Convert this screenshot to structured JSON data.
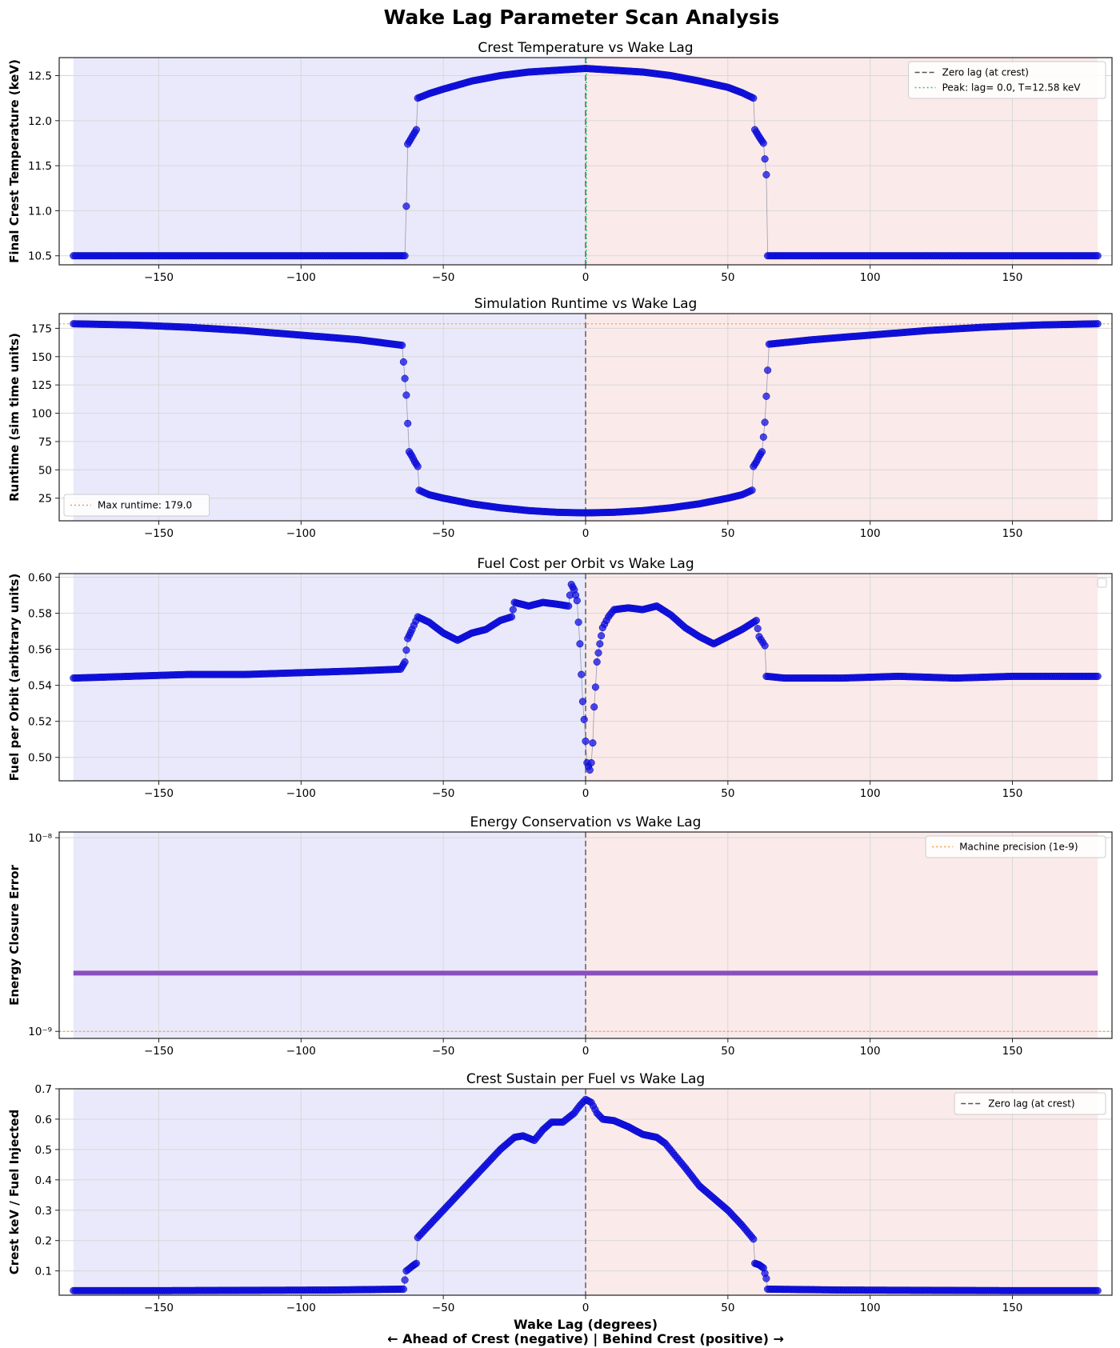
{
  "figure": {
    "title": "Wake Lag Parameter Scan Analysis",
    "xlabel": "Wake Lag (degrees)",
    "xlabel_note": "← Ahead of Crest (negative) | Behind Crest (positive) →"
  },
  "chart_data": [
    {
      "type": "scatter",
      "title": "Crest Temperature vs Wake Lag",
      "xlabel": "",
      "ylabel": "Final Crest Temperature (keV)",
      "xlim": [
        -185,
        185
      ],
      "ylim": [
        10.4,
        12.7
      ],
      "xticks": [
        -150,
        -100,
        -50,
        0,
        50,
        100,
        150
      ],
      "yticks": [
        10.5,
        11.0,
        11.5,
        12.0,
        12.5
      ],
      "ytick_labels": [
        "10.5",
        "11.0",
        "11.5",
        "12.0",
        "12.5"
      ],
      "grid": true,
      "shading": {
        "negative": "#e9e9fb",
        "positive": "#fbeaea"
      },
      "series_color": "#1010e6",
      "points": [
        [
          -180,
          10.5
        ],
        [
          -150,
          10.5
        ],
        [
          -120,
          10.5
        ],
        [
          -90,
          10.5
        ],
        [
          -70,
          10.5
        ],
        [
          -63.5,
          10.5
        ],
        [
          -63,
          11.05
        ],
        [
          -62.5,
          11.74
        ],
        [
          -61,
          11.82
        ],
        [
          -59.5,
          11.9
        ],
        [
          -59,
          12.25
        ],
        [
          -55,
          12.3
        ],
        [
          -50,
          12.35
        ],
        [
          -40,
          12.44
        ],
        [
          -30,
          12.5
        ],
        [
          -20,
          12.54
        ],
        [
          -10,
          12.56
        ],
        [
          0,
          12.58
        ],
        [
          10,
          12.56
        ],
        [
          20,
          12.54
        ],
        [
          30,
          12.5
        ],
        [
          40,
          12.44
        ],
        [
          50,
          12.37
        ],
        [
          55,
          12.31
        ],
        [
          59,
          12.25
        ],
        [
          59.5,
          11.9
        ],
        [
          61,
          11.82
        ],
        [
          62.5,
          11.75
        ],
        [
          63.5,
          11.4
        ],
        [
          64,
          10.5
        ],
        [
          70,
          10.5
        ],
        [
          100,
          10.5
        ],
        [
          130,
          10.5
        ],
        [
          160,
          10.5
        ],
        [
          180,
          10.5
        ]
      ],
      "reference_lines": [
        {
          "label": "Zero lag (at crest)",
          "x": 0,
          "style": "dashed",
          "color": "#555555"
        },
        {
          "label": "Peak: lag= 0.0, T=12.58 keV",
          "x": 0,
          "style": "dotted",
          "color": "#2ecc71"
        }
      ],
      "legend": "top-right",
      "log_y": false
    },
    {
      "type": "scatter",
      "title": "Simulation Runtime vs Wake Lag",
      "xlabel": "",
      "ylabel": "Runtime (sim time units)",
      "xlim": [
        -185,
        185
      ],
      "ylim": [
        5,
        188
      ],
      "xticks": [
        -150,
        -100,
        -50,
        0,
        50,
        100,
        150
      ],
      "yticks": [
        25,
        50,
        75,
        100,
        125,
        150,
        175
      ],
      "ytick_labels": [
        "25",
        "50",
        "75",
        "100",
        "125",
        "150",
        "175"
      ],
      "grid": true,
      "shading": {
        "negative": "#e9e9fb",
        "positive": "#fbeaea"
      },
      "series_color": "#1010e6",
      "points": [
        [
          -180,
          179
        ],
        [
          -160,
          178
        ],
        [
          -140,
          176
        ],
        [
          -120,
          173
        ],
        [
          -100,
          169
        ],
        [
          -80,
          165
        ],
        [
          -64.5,
          160
        ],
        [
          -63,
          116
        ],
        [
          -62,
          66
        ],
        [
          -61,
          62
        ],
        [
          -60,
          57
        ],
        [
          -59,
          53
        ],
        [
          -58.5,
          32
        ],
        [
          -55,
          28
        ],
        [
          -50,
          25
        ],
        [
          -40,
          20
        ],
        [
          -30,
          16.5
        ],
        [
          -20,
          14
        ],
        [
          -10,
          12.5
        ],
        [
          0,
          12
        ],
        [
          10,
          12.5
        ],
        [
          20,
          14
        ],
        [
          30,
          16.5
        ],
        [
          40,
          20
        ],
        [
          50,
          25
        ],
        [
          55,
          28
        ],
        [
          58.5,
          32
        ],
        [
          59,
          53
        ],
        [
          60,
          57
        ],
        [
          61,
          62
        ],
        [
          62,
          66
        ],
        [
          63,
          92
        ],
        [
          64.5,
          161
        ],
        [
          80,
          165
        ],
        [
          100,
          169
        ],
        [
          120,
          173
        ],
        [
          140,
          176
        ],
        [
          160,
          178
        ],
        [
          180,
          179
        ]
      ],
      "reference_lines": [
        {
          "label": "",
          "x": 0,
          "style": "dashed",
          "color": "#555555"
        },
        {
          "label": "Max runtime: 179.0",
          "y": 179,
          "style": "dotted",
          "color": "#f0a040"
        }
      ],
      "legend": "bottom-left",
      "log_y": false
    },
    {
      "type": "scatter",
      "title": "Fuel Cost per Orbit vs Wake Lag",
      "xlabel": "",
      "ylabel": "Fuel per Orbit (arbitrary units)",
      "xlim": [
        -185,
        185
      ],
      "ylim": [
        0.487,
        0.602
      ],
      "xticks": [
        -150,
        -100,
        -50,
        0,
        50,
        100,
        150
      ],
      "yticks": [
        0.5,
        0.52,
        0.54,
        0.56,
        0.58,
        0.6
      ],
      "ytick_labels": [
        "0.50",
        "0.52",
        "0.54",
        "0.56",
        "0.58",
        "0.60"
      ],
      "grid": true,
      "shading": {
        "negative": "#e9e9fb",
        "positive": "#fbeaea"
      },
      "series_color": "#1010e6",
      "points": [
        [
          -180,
          0.544
        ],
        [
          -160,
          0.545
        ],
        [
          -140,
          0.546
        ],
        [
          -120,
          0.546
        ],
        [
          -100,
          0.547
        ],
        [
          -80,
          0.548
        ],
        [
          -65,
          0.549
        ],
        [
          -63.5,
          0.553
        ],
        [
          -62.5,
          0.566
        ],
        [
          -61,
          0.571
        ],
        [
          -59,
          0.578
        ],
        [
          -55,
          0.575
        ],
        [
          -50,
          0.569
        ],
        [
          -45,
          0.565
        ],
        [
          -40,
          0.569
        ],
        [
          -35,
          0.571
        ],
        [
          -30,
          0.576
        ],
        [
          -26,
          0.578
        ],
        [
          -25,
          0.586
        ],
        [
          -20,
          0.584
        ],
        [
          -15,
          0.586
        ],
        [
          -10,
          0.585
        ],
        [
          -6,
          0.584
        ],
        [
          -5,
          0.596
        ],
        [
          -4,
          0.593
        ],
        [
          -3,
          0.587
        ],
        [
          -2,
          0.563
        ],
        [
          -1.5,
          0.546
        ],
        [
          -1,
          0.531
        ],
        [
          -0.5,
          0.521
        ],
        [
          0,
          0.509
        ],
        [
          0.5,
          0.497
        ],
        [
          1,
          0.495
        ],
        [
          1.5,
          0.493
        ],
        [
          2,
          0.497
        ],
        [
          2.5,
          0.508
        ],
        [
          3,
          0.528
        ],
        [
          3.5,
          0.539
        ],
        [
          4,
          0.553
        ],
        [
          5,
          0.563
        ],
        [
          6,
          0.572
        ],
        [
          8,
          0.578
        ],
        [
          10,
          0.582
        ],
        [
          15,
          0.583
        ],
        [
          20,
          0.582
        ],
        [
          25,
          0.584
        ],
        [
          28,
          0.581
        ],
        [
          30,
          0.579
        ],
        [
          35,
          0.572
        ],
        [
          40,
          0.567
        ],
        [
          45,
          0.563
        ],
        [
          50,
          0.567
        ],
        [
          55,
          0.571
        ],
        [
          60,
          0.576
        ],
        [
          61,
          0.567
        ],
        [
          63,
          0.562
        ],
        [
          63.5,
          0.545
        ],
        [
          70,
          0.544
        ],
        [
          90,
          0.544
        ],
        [
          110,
          0.545
        ],
        [
          130,
          0.544
        ],
        [
          150,
          0.545
        ],
        [
          170,
          0.545
        ],
        [
          180,
          0.545
        ]
      ],
      "reference_lines": [
        {
          "label": "",
          "x": 0,
          "style": "dashed",
          "color": "#555555"
        }
      ],
      "legend": "top-right",
      "log_y": false
    },
    {
      "type": "line",
      "title": "Energy Conservation vs Wake Lag",
      "xlabel": "",
      "ylabel": "Energy Closure Error",
      "xlim": [
        -185,
        185
      ],
      "ylim": [
        9.2e-10,
        1.07e-08
      ],
      "xticks": [
        -150,
        -100,
        -50,
        0,
        50,
        100,
        150
      ],
      "yticks": [
        1e-09,
        1e-08
      ],
      "ytick_labels": [
        "10⁻⁹",
        "10⁻⁸"
      ],
      "grid": true,
      "shading": {
        "negative": "#e9e9fb",
        "positive": "#fbeaea"
      },
      "series_color": "#8a4fbd",
      "points": [
        [
          -180,
          2e-09
        ],
        [
          180,
          2e-09
        ]
      ],
      "reference_lines": [
        {
          "label": "",
          "x": 0,
          "style": "dashed",
          "color": "#555555"
        },
        {
          "label": "Machine precision (1e-9)",
          "y": 1e-09,
          "style": "dotted",
          "color": "#f0a040"
        }
      ],
      "legend": "top-right",
      "log_y": true
    },
    {
      "type": "scatter",
      "title": "Crest Sustain per Fuel vs Wake Lag",
      "xlabel": "Wake Lag (degrees)",
      "ylabel": "Crest keV / Fuel Injected",
      "xlim": [
        -185,
        185
      ],
      "ylim": [
        0.02,
        0.7
      ],
      "xticks": [
        -150,
        -100,
        -50,
        0,
        50,
        100,
        150
      ],
      "yticks": [
        0.1,
        0.2,
        0.3,
        0.4,
        0.5,
        0.6,
        0.7
      ],
      "ytick_labels": [
        "0.1",
        "0.2",
        "0.3",
        "0.4",
        "0.5",
        "0.6",
        "0.7"
      ],
      "grid": true,
      "shading": {
        "negative": "#e9e9fb",
        "positive": "#fbeaea"
      },
      "series_color": "#1010e6",
      "points": [
        [
          -180,
          0.035
        ],
        [
          -150,
          0.035
        ],
        [
          -120,
          0.036
        ],
        [
          -90,
          0.037
        ],
        [
          -64,
          0.04
        ],
        [
          -63,
          0.1
        ],
        [
          -61,
          0.115
        ],
        [
          -59.5,
          0.125
        ],
        [
          -59,
          0.21
        ],
        [
          -55,
          0.25
        ],
        [
          -50,
          0.3
        ],
        [
          -45,
          0.35
        ],
        [
          -40,
          0.4
        ],
        [
          -35,
          0.45
        ],
        [
          -30,
          0.5
        ],
        [
          -25,
          0.54
        ],
        [
          -22,
          0.545
        ],
        [
          -18,
          0.53
        ],
        [
          -15,
          0.565
        ],
        [
          -12,
          0.59
        ],
        [
          -8,
          0.59
        ],
        [
          -4,
          0.62
        ],
        [
          -2,
          0.645
        ],
        [
          0,
          0.665
        ],
        [
          2,
          0.655
        ],
        [
          4,
          0.62
        ],
        [
          6,
          0.6
        ],
        [
          10,
          0.595
        ],
        [
          15,
          0.575
        ],
        [
          20,
          0.55
        ],
        [
          25,
          0.54
        ],
        [
          28,
          0.52
        ],
        [
          35,
          0.44
        ],
        [
          40,
          0.38
        ],
        [
          45,
          0.34
        ],
        [
          50,
          0.3
        ],
        [
          55,
          0.25
        ],
        [
          59,
          0.205
        ],
        [
          59.5,
          0.125
        ],
        [
          61,
          0.12
        ],
        [
          62.5,
          0.11
        ],
        [
          63.5,
          0.075
        ],
        [
          64,
          0.04
        ],
        [
          90,
          0.037
        ],
        [
          120,
          0.036
        ],
        [
          150,
          0.035
        ],
        [
          180,
          0.035
        ]
      ],
      "reference_lines": [
        {
          "label": "Zero lag (at crest)",
          "x": 0,
          "style": "dashed",
          "color": "#555555"
        }
      ],
      "legend": "top-right",
      "log_y": false
    }
  ]
}
